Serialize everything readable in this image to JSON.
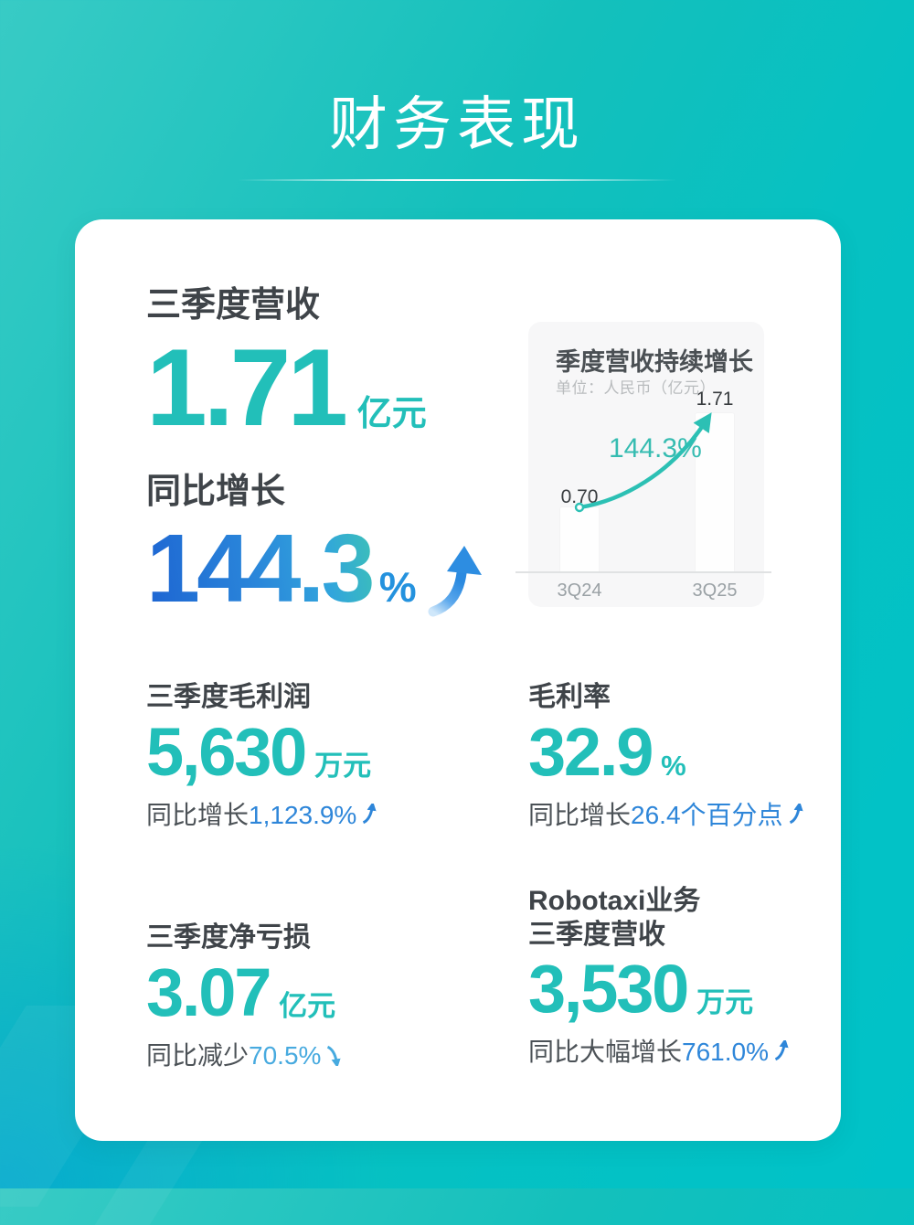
{
  "header": {
    "title": "财务表现"
  },
  "hero": {
    "revenue": {
      "label": "三季度营收",
      "value": "1.71",
      "unit": "亿元"
    },
    "growth": {
      "label": "同比增长",
      "value": "144.3",
      "unit": "%",
      "direction": "up"
    }
  },
  "chart_data": {
    "type": "bar",
    "title": "季度营收持续增长",
    "subtitle": "单位：人民币（亿元）",
    "categories": [
      "3Q24",
      "3Q25"
    ],
    "values": [
      0.7,
      1.71
    ],
    "value_labels": [
      "0.70",
      "1.71"
    ],
    "growth_label": "144.3%",
    "ylabel": "人民币（亿元）",
    "ylim": [
      0,
      2
    ],
    "grid": "off",
    "legend": "none",
    "annotation_arrow": "curved teal arrow from 3Q24 bar top to 3Q25 bar top"
  },
  "stats": [
    {
      "label": "三季度毛利润",
      "value": "5,630",
      "unit": "万元",
      "sub_prefix": "同比增长 ",
      "sub_value": "1,123.9%",
      "direction": "up"
    },
    {
      "label": "毛利率",
      "value": "32.9",
      "unit": "%",
      "sub_prefix": "同比增长 ",
      "sub_value": "26.4个百分点",
      "direction": "up"
    },
    {
      "label": "三季度净亏损",
      "value": "3.07",
      "unit": "亿元",
      "sub_prefix": "同比减少",
      "sub_value": "70.5%",
      "direction": "down"
    },
    {
      "label": "Robotaxi业务",
      "label2": "三季度营收",
      "value": "3,530",
      "unit": "万元",
      "sub_prefix": "同比大幅增长 ",
      "sub_value": "761.0%",
      "direction": "up"
    }
  ],
  "colors": {
    "background_teal": "#0ac1c1",
    "accent_teal": "#22bfb9",
    "accent_blue": "#2e86d9",
    "accent_light_blue": "#47aadf",
    "gradient_number": [
      "#1d64d2",
      "#3cc0b8"
    ],
    "card": "#ffffff",
    "chart_panel": "#f7f7f8"
  }
}
